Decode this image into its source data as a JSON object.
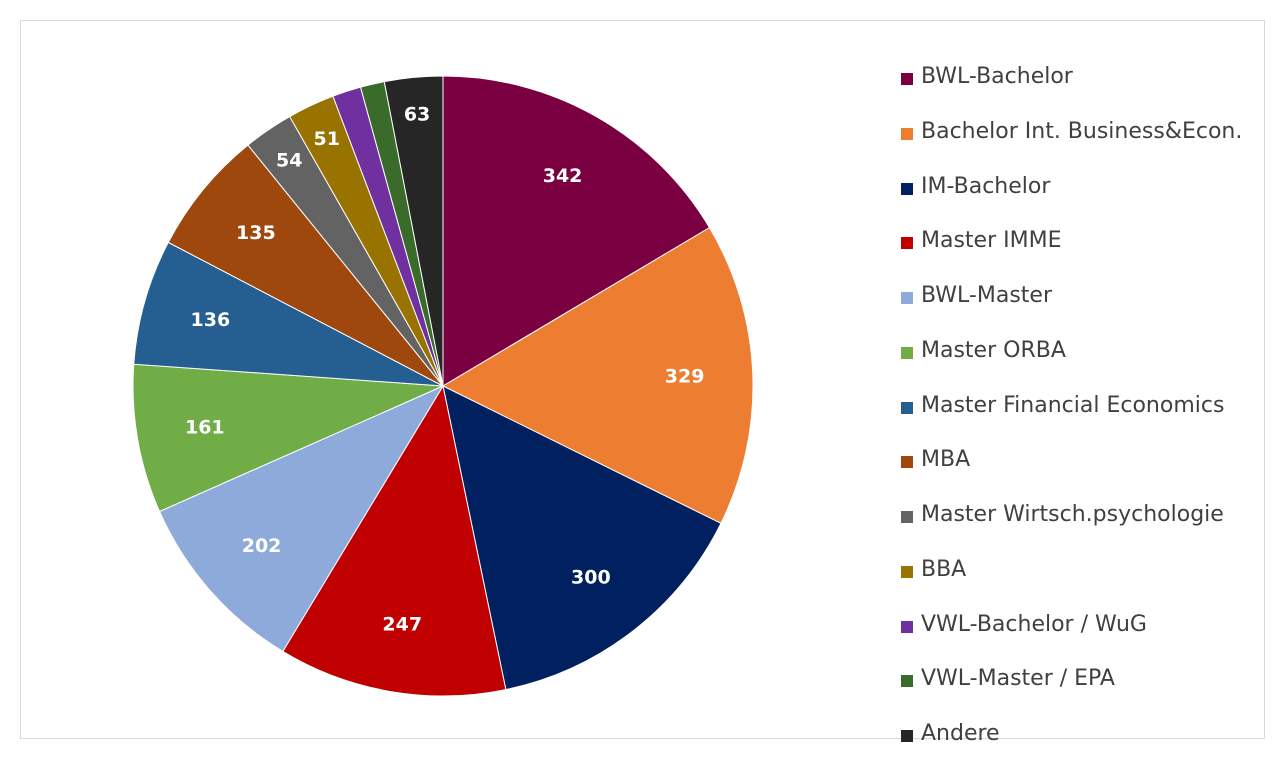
{
  "chart_data": {
    "type": "pie",
    "categories": [
      "BWL-Bachelor",
      "Bachelor Int. Business&Econ.",
      "IM-Bachelor",
      "Master IMME",
      "BWL-Master",
      "Master ORBA",
      "Master Financial Economics",
      "MBA",
      "Master Wirtsch.psychologie",
      "BBA",
      "VWL-Bachelor / WuG",
      "VWL-Master / EPA",
      "Andere"
    ],
    "values": [
      342,
      329,
      300,
      247,
      202,
      161,
      136,
      135,
      54,
      51,
      31,
      26,
      63
    ],
    "data_labels": [
      "342",
      "329",
      "300",
      "247",
      "202",
      "161",
      "136",
      "135",
      "54",
      "51",
      "",
      "",
      "63"
    ],
    "colors": [
      "#7b0041",
      "#ed7d31",
      "#002060",
      "#c00000",
      "#8eaadb",
      "#70ad47",
      "#255e91",
      "#9e480e",
      "#636363",
      "#997300",
      "#7030a0",
      "#3a6b2a",
      "#262626"
    ],
    "legend_position": "right",
    "start_angle": "top",
    "direction": "clockwise"
  }
}
